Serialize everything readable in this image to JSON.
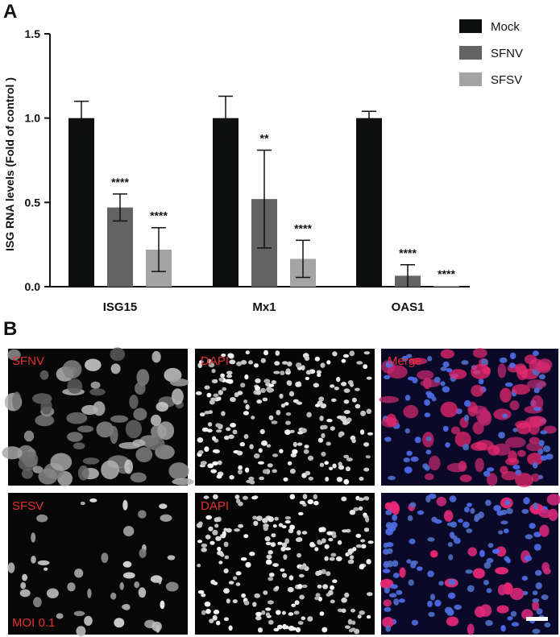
{
  "panel_a_letter": "A",
  "panel_b_letter": "B",
  "colors": {
    "Mock": "#0d0f0e",
    "SFNV": "#636363",
    "SFSV": "#a4a4a4",
    "micrograph_label": "#e53030"
  },
  "chart_data": {
    "type": "bar",
    "categories": [
      "ISG15",
      "Mx1",
      "OAS1"
    ],
    "ylabel": "ISG RNA levels (Fold of control )",
    "xlabel": "",
    "title": "",
    "ylim": [
      0,
      1.5
    ],
    "yticks": [
      0.0,
      0.5,
      1.0,
      1.5
    ],
    "ytick_labels": [
      "0.0",
      "0.5",
      "1.0",
      "1.5"
    ],
    "legend_position": "top-right",
    "series": [
      {
        "name": "Mock",
        "values": [
          1.0,
          1.0,
          1.0
        ],
        "errors": [
          0.1,
          0.13,
          0.04
        ],
        "significance": [
          "",
          "",
          ""
        ]
      },
      {
        "name": "SFNV",
        "values": [
          0.47,
          0.52,
          0.065
        ],
        "errors": [
          0.08,
          0.29,
          0.065
        ],
        "significance": [
          "****",
          "**",
          "****"
        ]
      },
      {
        "name": "SFSV",
        "values": [
          0.22,
          0.165,
          0.005
        ],
        "errors": [
          0.13,
          0.11,
          0.0
        ],
        "significance": [
          "****",
          "****",
          "****"
        ]
      }
    ]
  },
  "micrographs": {
    "row1": {
      "channel1": "SFNV",
      "channel2": "DAPI",
      "channel3": "Merge"
    },
    "row2": {
      "channel1": "SFSV",
      "channel2": "DAPI",
      "moi": "MOI 0.1"
    }
  }
}
